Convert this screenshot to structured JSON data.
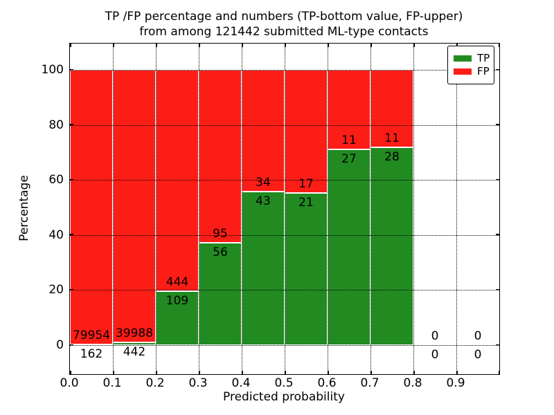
{
  "figure": {
    "title_line1": "TP /FP percentage and numbers (TP-bottom value, FP-upper)",
    "title_line2": "from among 121442 submitted ML-type contacts",
    "xlabel": "Predicted probability",
    "ylabel": "Percentage"
  },
  "legend": {
    "position": "upper right",
    "entries": [
      {
        "label": "TP",
        "color": "#218A21"
      },
      {
        "label": "FP",
        "color": "#FC1D17"
      }
    ]
  },
  "colors": {
    "tp": "#218A21",
    "fp": "#FC1D17",
    "bar_edge": "#ffffff",
    "grid": "#000000",
    "text": "#000000",
    "background": "#ffffff"
  },
  "chart_data": {
    "type": "bar",
    "stacked": true,
    "title": "TP /FP percentage and numbers (TP-bottom value, FP-upper) from among 121442 submitted ML-type contacts",
    "total_contacts": 121442,
    "xlabel": "Predicted probability",
    "ylabel": "Percentage",
    "xlim": [
      0.0,
      1.0
    ],
    "ylim": [
      -10.5,
      109.5
    ],
    "grid": "dotted",
    "legend_position": "upper right",
    "x_tick_labels": [
      "0.0",
      "0.1",
      "0.2",
      "0.3",
      "0.4",
      "0.5",
      "0.6",
      "0.7",
      "0.8",
      "0.9"
    ],
    "y_ticks": [
      0,
      20,
      40,
      60,
      80,
      100
    ],
    "bin_width": 0.1,
    "series": [
      {
        "name": "TP",
        "color": "#218A21",
        "counts": [
          162,
          442,
          109,
          56,
          43,
          21,
          27,
          28,
          0,
          0
        ]
      },
      {
        "name": "FP",
        "color": "#FC1D17",
        "counts": [
          79954,
          39988,
          444,
          95,
          34,
          17,
          11,
          11,
          0,
          0
        ]
      }
    ],
    "bins": [
      {
        "range": [
          0.0,
          0.1
        ],
        "tp_count": 162,
        "fp_count": 79954,
        "tp_pct": 0.2,
        "fp_pct": 99.8
      },
      {
        "range": [
          0.1,
          0.2
        ],
        "tp_count": 442,
        "fp_count": 39988,
        "tp_pct": 1.09,
        "fp_pct": 98.91
      },
      {
        "range": [
          0.2,
          0.3
        ],
        "tp_count": 109,
        "fp_count": 444,
        "tp_pct": 19.71,
        "fp_pct": 80.29
      },
      {
        "range": [
          0.3,
          0.4
        ],
        "tp_count": 56,
        "fp_count": 95,
        "tp_pct": 37.09,
        "fp_pct": 62.91
      },
      {
        "range": [
          0.4,
          0.5
        ],
        "tp_count": 43,
        "fp_count": 34,
        "tp_pct": 55.84,
        "fp_pct": 44.16
      },
      {
        "range": [
          0.5,
          0.6
        ],
        "tp_count": 21,
        "fp_count": 17,
        "tp_pct": 55.26,
        "fp_pct": 44.74
      },
      {
        "range": [
          0.6,
          0.7
        ],
        "tp_count": 27,
        "fp_count": 11,
        "tp_pct": 71.05,
        "fp_pct": 28.95
      },
      {
        "range": [
          0.7,
          0.8
        ],
        "tp_count": 28,
        "fp_count": 11,
        "tp_pct": 71.79,
        "fp_pct": 28.21
      },
      {
        "range": [
          0.8,
          0.9
        ],
        "tp_count": 0,
        "fp_count": 0,
        "tp_pct": 0,
        "fp_pct": 0
      },
      {
        "range": [
          0.9,
          1.0
        ],
        "tp_count": 0,
        "fp_count": 0,
        "tp_pct": 0,
        "fp_pct": 0
      }
    ]
  }
}
